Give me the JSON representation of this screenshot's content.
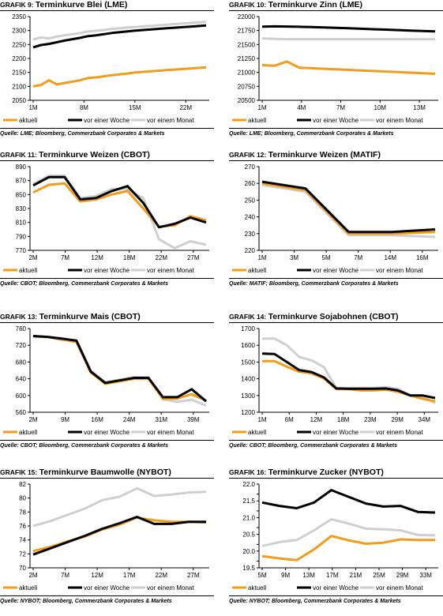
{
  "source_label": "Quelle:",
  "chart_data": [
    {
      "type": "line",
      "title_prefix": "GRAFIK 9:",
      "title": "Terminkurve Blei (LME)",
      "source": "LME; Bloomberg, Commerzbank Corporates & Markets",
      "x_ticks": [
        "1M",
        "8M",
        "15M",
        "22M"
      ],
      "ylim": [
        2050,
        2350
      ],
      "y_ticks": [
        2050,
        2100,
        2150,
        2200,
        2250,
        2300,
        2350
      ],
      "series": [
        {
          "name": "aktuell",
          "color": "#f39c1a",
          "values": [
            2100,
            2105,
            2122,
            2107,
            2112,
            2117,
            2122,
            2130,
            2132,
            2136,
            2140,
            2143,
            2146,
            2150,
            2152,
            2154,
            2156,
            2158,
            2160,
            2162,
            2164,
            2166,
            2168
          ]
        },
        {
          "name": "vor einer Woche",
          "color": "#000000",
          "values": [
            2240,
            2248,
            2252,
            2258,
            2264,
            2269,
            2274,
            2280,
            2283,
            2287,
            2291,
            2294,
            2297,
            2300,
            2302,
            2304,
            2306,
            2308,
            2310,
            2312,
            2314,
            2316,
            2318
          ]
        },
        {
          "name": "vor einem Monat",
          "color": "#cfcfcf",
          "values": [
            2268,
            2275,
            2272,
            2278,
            2283,
            2287,
            2291,
            2297,
            2299,
            2302,
            2306,
            2308,
            2311,
            2313,
            2315,
            2317,
            2319,
            2321,
            2323,
            2325,
            2327,
            2329,
            2331
          ]
        }
      ]
    },
    {
      "type": "line",
      "title_prefix": "GRAFIK 10:",
      "title": "Terminkurve Zinn (LME)",
      "source": "LME; Bloomberg, Commerzbank Corporates & Markets",
      "x_ticks": [
        "1M",
        "4M",
        "7M",
        "10M",
        "13M"
      ],
      "ylim": [
        20500,
        22000
      ],
      "y_ticks": [
        20500,
        20750,
        21000,
        21250,
        21500,
        21750,
        22000
      ],
      "series": [
        {
          "name": "aktuell",
          "color": "#f39c1a",
          "values": [
            21130,
            21120,
            21195,
            21085,
            21075,
            21065,
            21055,
            21045,
            21035,
            21025,
            21015,
            21005,
            20995,
            20985,
            20975
          ]
        },
        {
          "name": "vor einer Woche",
          "color": "#000000",
          "values": [
            21820,
            21825,
            21822,
            21818,
            21812,
            21805,
            21798,
            21790,
            21782,
            21774,
            21766,
            21758,
            21750,
            21742,
            21734
          ]
        },
        {
          "name": "vor einem Monat",
          "color": "#cfcfcf",
          "values": [
            21610,
            21600,
            21595,
            21595,
            21595,
            21595,
            21595,
            21595,
            21595,
            21595,
            21595,
            21595,
            21595,
            21595,
            21595
          ]
        }
      ]
    },
    {
      "type": "line",
      "title_prefix": "GRAFIK 11:",
      "title": "Terminkurve Weizen (CBOT)",
      "source": "CBOT; Bloomberg, Commerzbank Corporates & Markets",
      "x_ticks": [
        "2M",
        "7M",
        "12M",
        "18M",
        "22M",
        "27M"
      ],
      "ylim": [
        770,
        890
      ],
      "y_ticks": [
        770,
        790,
        810,
        830,
        850,
        870,
        890
      ],
      "series": [
        {
          "name": "aktuell",
          "color": "#f39c1a",
          "values": [
            853,
            864,
            866,
            840,
            843,
            850,
            855,
            830,
            804,
            806,
            819,
            813
          ]
        },
        {
          "name": "vor einer Woche",
          "color": "#000000",
          "values": [
            863,
            875,
            875,
            843,
            845,
            855,
            862,
            838,
            803,
            808,
            817,
            810
          ]
        },
        {
          "name": "vor einem Monat",
          "color": "#cfcfcf",
          "values": [
            865,
            877,
            877,
            845,
            848,
            858,
            858,
            845,
            786,
            773,
            783,
            778
          ]
        }
      ]
    },
    {
      "type": "line",
      "title_prefix": "GRAFIK 12:",
      "title": "Terminkurve Weizen (MATIF)",
      "source": "MATIF; Bloomberg, Commerzbank Corporates & Markets",
      "x_ticks": [
        "1M",
        "3M",
        "5M",
        "7M",
        "14M",
        "16M"
      ],
      "ylim": [
        220,
        270
      ],
      "y_ticks": [
        220,
        230,
        240,
        250,
        260,
        270
      ],
      "series": [
        {
          "name": "aktuell",
          "color": "#f39c1a",
          "values": [
            260,
            256,
            230,
            230,
            231
          ]
        },
        {
          "name": "vor einer Woche",
          "color": "#000000",
          "values": [
            261,
            257,
            231,
            231,
            232.5
          ]
        },
        {
          "name": "vor einem Monat",
          "color": "#cfcfcf",
          "values": [
            259,
            255,
            229,
            229,
            228
          ]
        }
      ]
    },
    {
      "type": "line",
      "title_prefix": "GRAFIK 13:",
      "title": "Terminkurve Mais (CBOT)",
      "source": "CBOT; Bloomberg, Commerzbank Corporates & Markets",
      "x_ticks": [
        "2M",
        "9M",
        "16M",
        "24M",
        "31M",
        "39M"
      ],
      "ylim": [
        560,
        760
      ],
      "y_ticks": [
        560,
        600,
        640,
        680,
        720,
        760
      ],
      "series": [
        {
          "name": "aktuell",
          "color": "#f39c1a",
          "values": [
            742,
            740,
            734,
            728,
            655,
            628,
            634,
            640,
            640,
            592,
            593,
            603,
            588
          ]
        },
        {
          "name": "vor einer Woche",
          "color": "#000000",
          "values": [
            742,
            740,
            736,
            731,
            657,
            630,
            636,
            642,
            642,
            596,
            596,
            615,
            586
          ]
        },
        {
          "name": "vor einem Monat",
          "color": "#cfcfcf",
          "values": [
            740,
            740,
            732,
            732,
            660,
            632,
            638,
            644,
            644,
            591,
            585,
            590,
            576
          ]
        }
      ]
    },
    {
      "type": "line",
      "title_prefix": "GRAFIK 14:",
      "title": "Terminkurve Sojabohnen (CBOT)",
      "source": "CBOT; Bloomberg, Commerzbank Corporates & Markets",
      "x_ticks": [
        "1M",
        "6M",
        "12M",
        "18M",
        "23M",
        "29M",
        "34M"
      ],
      "ylim": [
        1200,
        1700
      ],
      "y_ticks": [
        1200,
        1300,
        1400,
        1500,
        1600,
        1700
      ],
      "series": [
        {
          "name": "aktuell",
          "color": "#f39c1a",
          "values": [
            1505,
            1505,
            1472,
            1442,
            1432,
            1402,
            1338,
            1338,
            1330,
            1330,
            1335,
            1322,
            1300,
            1280,
            1265
          ]
        },
        {
          "name": "vor einer Woche",
          "color": "#000000",
          "values": [
            1550,
            1548,
            1500,
            1452,
            1440,
            1408,
            1342,
            1340,
            1340,
            1340,
            1342,
            1330,
            1300,
            1300,
            1285
          ]
        },
        {
          "name": "vor einem Monat",
          "color": "#cfcfcf",
          "values": [
            1640,
            1640,
            1600,
            1530,
            1510,
            1470,
            1345,
            1345,
            1345,
            1345,
            1350,
            1340,
            1300,
            1290,
            1255
          ]
        }
      ]
    },
    {
      "type": "line",
      "title_prefix": "GRAFIK 15:",
      "title": "Terminkurve Baumwolle (NYBOT)",
      "source": "NYBOT; Bloomberg, Commerzbank Corporates & Markets",
      "x_ticks": [
        "2M",
        "7M",
        "12M",
        "17M",
        "22M",
        "27M"
      ],
      "ylim": [
        70,
        82
      ],
      "y_ticks": [
        70,
        72,
        74,
        76,
        78,
        80,
        82
      ],
      "series": [
        {
          "name": "aktuell",
          "color": "#f39c1a",
          "values": [
            72.4,
            73.0,
            73.8,
            74.5,
            75.5,
            76.2,
            77.2,
            76.8,
            76.6,
            76.6,
            76.5
          ]
        },
        {
          "name": "vor einer Woche",
          "color": "#000000",
          "values": [
            71.9,
            72.8,
            73.7,
            74.6,
            75.6,
            76.4,
            77.3,
            76.3,
            76.3,
            76.6,
            76.6
          ]
        },
        {
          "name": "vor einem Monat",
          "color": "#cfcfcf",
          "values": [
            76.0,
            76.7,
            77.6,
            78.5,
            79.7,
            80.2,
            81.4,
            80.3,
            80.5,
            80.8,
            80.9
          ]
        }
      ]
    },
    {
      "type": "line",
      "title_prefix": "GRAFIK 16:",
      "title": "Terminkurve Zucker (NYBOT)",
      "source": "NYBOT; Bloomberg, Commerzbank Corporates & Markets",
      "x_ticks": [
        "5M",
        "9M",
        "13M",
        "17M",
        "21M",
        "25M",
        "29M",
        "33M"
      ],
      "ylim": [
        19.5,
        22.0
      ],
      "y_ticks": [
        19.5,
        19.7,
        20.0,
        20.2,
        20.5,
        20.7,
        21.0,
        21.2,
        21.5,
        21.7,
        22.0
      ],
      "y_tick_labels": [
        "19.5",
        "",
        "20.0",
        "",
        "20.5",
        "",
        "21.0",
        "",
        "21.5",
        "",
        "22.0"
      ],
      "series": [
        {
          "name": "aktuell",
          "color": "#f39c1a",
          "values": [
            19.85,
            19.78,
            19.73,
            20.05,
            20.45,
            20.32,
            20.22,
            20.25,
            20.35,
            20.33,
            20.33
          ]
        },
        {
          "name": "vor einer Woche",
          "color": "#000000",
          "values": [
            21.45,
            21.35,
            21.28,
            21.45,
            21.82,
            21.62,
            21.42,
            21.33,
            21.35,
            21.17,
            21.15
          ]
        },
        {
          "name": "vor einem Monat",
          "color": "#cfcfcf",
          "values": [
            20.15,
            20.27,
            20.33,
            20.62,
            20.95,
            20.82,
            20.67,
            20.65,
            20.62,
            20.48,
            20.47
          ]
        }
      ]
    }
  ]
}
